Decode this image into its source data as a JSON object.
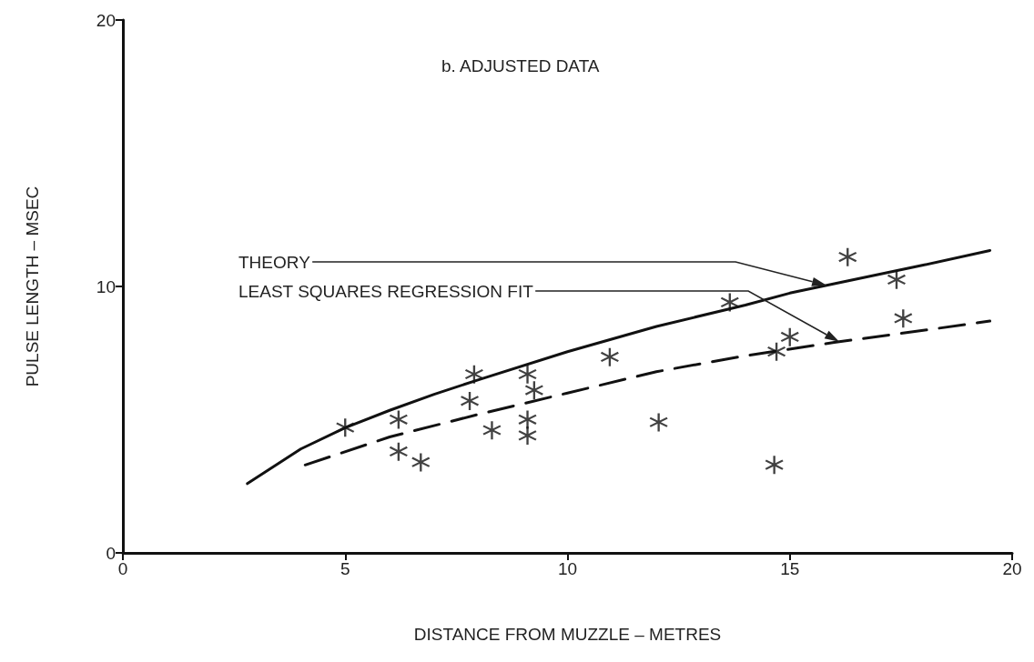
{
  "chart_data": {
    "type": "scatter",
    "title": "b. ADJUSTED DATA",
    "xlabel": "DISTANCE FROM MUZZLE – METRES",
    "ylabel": "PULSE LENGTH – MSEC",
    "xlim": [
      0,
      20
    ],
    "xticks": [
      0,
      5,
      10,
      15,
      20
    ],
    "ylim": [
      0,
      20
    ],
    "yticks": [
      0,
      10,
      20
    ],
    "grid": false,
    "series": [
      {
        "type": "scatter",
        "color": "#111111",
        "marker": "cross",
        "x": [
          5.0,
          6.2,
          6.2,
          6.7,
          7.9,
          7.8,
          8.3,
          9.1,
          9.25,
          9.1,
          9.1,
          10.95,
          12.05,
          13.65,
          14.65,
          14.7,
          15.0,
          16.3,
          17.4,
          17.55
        ],
        "values": [
          4.7,
          5.0,
          3.8,
          3.4,
          6.7,
          5.7,
          4.6,
          6.7,
          6.1,
          5.0,
          4.4,
          7.35,
          4.9,
          9.4,
          3.3,
          7.55,
          8.1,
          11.1,
          10.25,
          8.8
        ]
      },
      {
        "type": "line",
        "color": "#111111",
        "marker": "none",
        "line_style": "solid",
        "x": [
          2.8,
          4,
          5,
          6,
          7,
          8,
          10,
          12,
          14,
          15,
          16,
          18,
          19.5
        ],
        "values": [
          2.6,
          3.9,
          4.7,
          5.35,
          5.95,
          6.5,
          7.55,
          8.5,
          9.3,
          9.75,
          10.1,
          10.8,
          11.35
        ]
      },
      {
        "type": "line",
        "color": "#111111",
        "marker": "none",
        "line_style": "dashed",
        "x": [
          4.1,
          6,
          8,
          10,
          12,
          14,
          16,
          18,
          19.5
        ],
        "values": [
          3.3,
          4.35,
          5.2,
          6.0,
          6.8,
          7.4,
          7.9,
          8.35,
          8.7
        ]
      }
    ],
    "annotations": [
      "THEORY",
      "LEAST SQUARES REGRESSION FIT"
    ]
  }
}
